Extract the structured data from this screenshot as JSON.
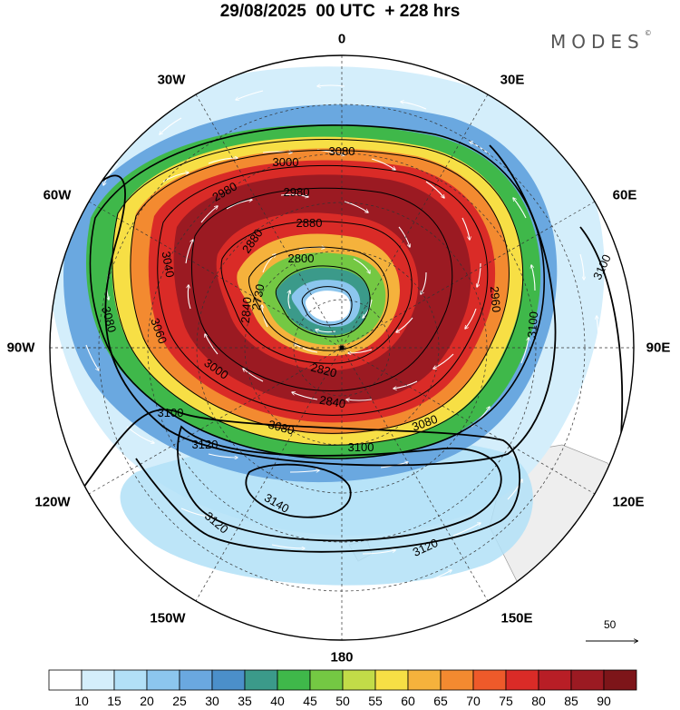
{
  "title": "29/08/2025  00 UTC  + 228 hrs",
  "brand": {
    "name": "MODES",
    "mark": "©"
  },
  "longitude_labels": {
    "lon_0": "0",
    "lon_30e": "30E",
    "lon_60e": "60E",
    "lon_90e": "90E",
    "lon_120e": "120E",
    "lon_150e": "150E",
    "lon_180": "180",
    "lon_150w": "150W",
    "lon_120w": "120W",
    "lon_90w": "90W",
    "lon_60w": "60W",
    "lon_30w": "30W"
  },
  "contour_labels": [
    {
      "name": "contour-3080-a",
      "text": "3080"
    },
    {
      "name": "contour-3000-a",
      "text": "3000"
    },
    {
      "name": "contour-2980-a",
      "text": "2980"
    },
    {
      "name": "contour-2880-a",
      "text": "2880"
    },
    {
      "name": "contour-2880-b",
      "text": "2880"
    },
    {
      "name": "contour-2800",
      "text": "2800"
    },
    {
      "name": "contour-2730",
      "text": "2730"
    },
    {
      "name": "contour-2840",
      "text": "2840"
    },
    {
      "name": "contour-2820",
      "text": "2820"
    },
    {
      "name": "contour-2840-b",
      "text": "2840"
    },
    {
      "name": "contour-3000-b",
      "text": "3000"
    },
    {
      "name": "contour-3040",
      "text": "3040"
    },
    {
      "name": "contour-3060",
      "text": "3060"
    },
    {
      "name": "contour-3080-b",
      "text": "3080"
    },
    {
      "name": "contour-3080-c",
      "text": "3080"
    },
    {
      "name": "contour-3080-d",
      "text": "3080"
    },
    {
      "name": "contour-3100-a",
      "text": "3100"
    },
    {
      "name": "contour-3100-b",
      "text": "3100"
    },
    {
      "name": "contour-3100-c",
      "text": "3100"
    },
    {
      "name": "contour-3100-d",
      "text": "3100"
    },
    {
      "name": "contour-3120-a",
      "text": "3120"
    },
    {
      "name": "contour-3120-b",
      "text": "3120"
    },
    {
      "name": "contour-3120-c",
      "text": "3120"
    },
    {
      "name": "contour-3140",
      "text": "3140"
    },
    {
      "name": "contour-2980-b",
      "text": "2980"
    },
    {
      "name": "contour-2960",
      "text": "2960"
    }
  ],
  "vector_scale": {
    "value": "50"
  },
  "colorbar": {
    "ticks": [
      "10",
      "15",
      "20",
      "25",
      "30",
      "35",
      "40",
      "45",
      "50",
      "55",
      "60",
      "65",
      "70",
      "75",
      "80",
      "85",
      "90"
    ],
    "colors": [
      "#ffffff",
      "#d4eefb",
      "#b2e0f7",
      "#8cc6ee",
      "#6aa8e0",
      "#4b8fca",
      "#3b9a8a",
      "#3fb84a",
      "#74c843",
      "#c2dc48",
      "#f7df45",
      "#f5b23c",
      "#f38a30",
      "#ee5a2a",
      "#da2b27",
      "#b81e26",
      "#9b1a22",
      "#7d1519"
    ]
  }
}
